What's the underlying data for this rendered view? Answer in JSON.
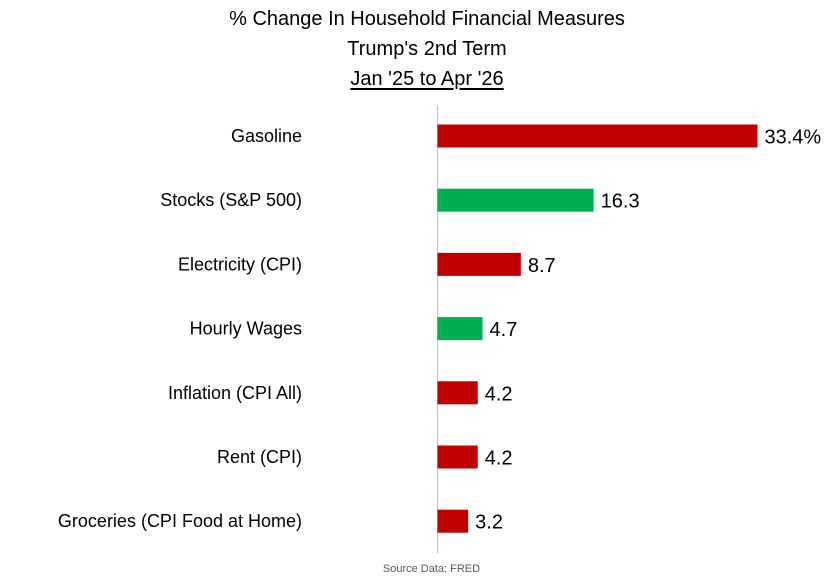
{
  "title": {
    "line1": "% Change In Household Financial Measures",
    "line2": "Trump's 2nd Term",
    "line3": "Jan '25 to Apr '26"
  },
  "source": "Source Data: FRED",
  "colors": {
    "negative": "#c00000",
    "positive": "#00b050",
    "axis": "#bfbfbf"
  },
  "chart_data": {
    "type": "bar",
    "orientation": "horizontal",
    "categories": [
      "Gasoline",
      "Stocks (S&P 500)",
      "Electricity (CPI)",
      "Hourly Wages",
      "Inflation (CPI All)",
      "Rent (CPI)",
      "Groceries (CPI Food at Home)"
    ],
    "values": [
      33.4,
      16.3,
      8.7,
      4.7,
      4.2,
      4.2,
      3.2
    ],
    "value_labels": [
      "33.4%",
      "16.3",
      "8.7",
      "4.7",
      "4.2",
      "4.2",
      "3.2"
    ],
    "bar_colors": [
      "#c00000",
      "#00b050",
      "#c00000",
      "#00b050",
      "#c00000",
      "#c00000",
      "#c00000"
    ],
    "xlim": [
      0,
      33.4
    ],
    "grid": false,
    "legend": "none"
  }
}
